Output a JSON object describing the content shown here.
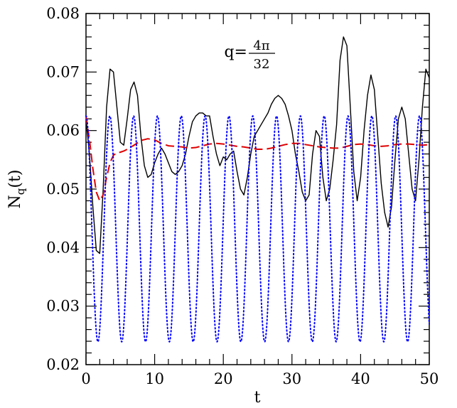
{
  "chart_data": {
    "type": "line",
    "xlabel": "t",
    "ylabel_main": "N",
    "ylabel_sub": "q",
    "ylabel_suffix": "(t)",
    "xlim": [
      0,
      50
    ],
    "ylim": [
      0.02,
      0.08
    ],
    "xticks": [
      0,
      10,
      20,
      30,
      40,
      50
    ],
    "xtick_labels": [
      "0",
      "10",
      "20",
      "30",
      "40",
      "50"
    ],
    "yticks": [
      0.02,
      0.03,
      0.04,
      0.05,
      0.06,
      0.07,
      0.08
    ],
    "ytick_labels": [
      "0.02",
      "0.03",
      "0.04",
      "0.05",
      "0.06",
      "0.07",
      "0.08"
    ],
    "grid": false,
    "annotation": {
      "prefix": "q=",
      "numerator": "4π",
      "denominator": "32",
      "position": "top-center"
    },
    "series": [
      {
        "style": "solid",
        "color": "#000000",
        "x": [
          0,
          0.5,
          1.0,
          1.5,
          2.0,
          2.5,
          3.0,
          3.5,
          4.0,
          4.5,
          5.0,
          5.5,
          6.0,
          6.5,
          7.0,
          7.5,
          8.0,
          8.5,
          9.0,
          9.5,
          10.0,
          10.5,
          11.0,
          11.5,
          12.0,
          12.5,
          13.0,
          13.5,
          14.0,
          14.5,
          15.0,
          15.5,
          16.0,
          16.5,
          17.0,
          17.5,
          18.0,
          18.5,
          19.0,
          19.5,
          20.0,
          20.5,
          21.0,
          21.5,
          22.0,
          22.5,
          23.0,
          23.5,
          24.0,
          24.5,
          25.0,
          25.5,
          26.0,
          26.5,
          27.0,
          27.5,
          28.0,
          28.5,
          29.0,
          29.5,
          30.0,
          30.5,
          31.0,
          31.5,
          32.0,
          32.5,
          33.0,
          33.5,
          34.0,
          34.5,
          35.0,
          35.5,
          36.0,
          36.5,
          37.0,
          37.5,
          38.0,
          38.5,
          39.0,
          39.5,
          40.0,
          40.5,
          41.0,
          41.5,
          42.0,
          42.5,
          43.0,
          43.5,
          44.0,
          44.5,
          45.0,
          45.5,
          46.0,
          46.5,
          47.0,
          47.5,
          48.0,
          48.5,
          49.0,
          49.5,
          50.0
        ],
        "y": [
          0.062,
          0.056,
          0.047,
          0.0395,
          0.039,
          0.05,
          0.064,
          0.0705,
          0.07,
          0.064,
          0.058,
          0.0575,
          0.062,
          0.067,
          0.0683,
          0.066,
          0.059,
          0.054,
          0.052,
          0.0525,
          0.0545,
          0.056,
          0.057,
          0.056,
          0.0545,
          0.053,
          0.0525,
          0.053,
          0.054,
          0.056,
          0.059,
          0.0615,
          0.0625,
          0.063,
          0.063,
          0.0625,
          0.0625,
          0.059,
          0.056,
          0.054,
          0.0555,
          0.055,
          0.056,
          0.0565,
          0.053,
          0.05,
          0.049,
          0.052,
          0.056,
          0.059,
          0.06,
          0.061,
          0.062,
          0.063,
          0.0645,
          0.0655,
          0.066,
          0.0655,
          0.0645,
          0.0625,
          0.06,
          0.056,
          0.053,
          0.0495,
          0.048,
          0.049,
          0.056,
          0.06,
          0.059,
          0.052,
          0.048,
          0.05,
          0.055,
          0.061,
          0.072,
          0.076,
          0.0745,
          0.064,
          0.053,
          0.048,
          0.052,
          0.06,
          0.066,
          0.0695,
          0.067,
          0.059,
          0.051,
          0.046,
          0.0435,
          0.047,
          0.055,
          0.062,
          0.064,
          0.062,
          0.056,
          0.05,
          0.048,
          0.055,
          0.064,
          0.0705,
          0.069
        ]
      },
      {
        "style": "dashed",
        "color": "#e00000",
        "x": [
          0,
          0.5,
          1.0,
          1.5,
          2.0,
          2.5,
          3.0,
          3.5,
          4.0,
          4.5,
          5.0,
          5.5,
          6.0,
          7.0,
          8.0,
          9.0,
          10.0,
          11.0,
          12.0,
          13.0,
          14.0,
          15.0,
          16.0,
          17.0,
          18.0,
          19.0,
          20.0,
          21.0,
          22.0,
          23.0,
          24.0,
          25.0,
          26.0,
          27.0,
          28.0,
          29.0,
          30.0,
          31.0,
          32.0,
          33.0,
          34.0,
          35.0,
          36.0,
          37.0,
          38.0,
          39.0,
          40.0,
          41.0,
          42.0,
          43.0,
          44.0,
          45.0,
          46.0,
          47.0,
          48.0,
          49.0,
          50.0
        ],
        "y": [
          0.0625,
          0.0585,
          0.0535,
          0.0495,
          0.048,
          0.049,
          0.052,
          0.0545,
          0.0558,
          0.0562,
          0.0563,
          0.0565,
          0.0568,
          0.0575,
          0.0583,
          0.0586,
          0.0584,
          0.0578,
          0.0574,
          0.0573,
          0.0572,
          0.057,
          0.0571,
          0.0574,
          0.0577,
          0.0578,
          0.0577,
          0.0575,
          0.0573,
          0.0572,
          0.057,
          0.0568,
          0.0568,
          0.057,
          0.0573,
          0.0576,
          0.0578,
          0.0578,
          0.0576,
          0.0574,
          0.0572,
          0.0571,
          0.057,
          0.057,
          0.0573,
          0.0576,
          0.0577,
          0.0576,
          0.0574,
          0.0573,
          0.0574,
          0.0576,
          0.0577,
          0.0577,
          0.0576,
          0.0575,
          0.0576
        ]
      },
      {
        "style": "dotted",
        "color": "#0000ff",
        "formula": "cosine",
        "center": 0.0432,
        "amplitude": 0.0193,
        "period": 3.47,
        "x_start": 0,
        "x_end": 50
      }
    ]
  }
}
